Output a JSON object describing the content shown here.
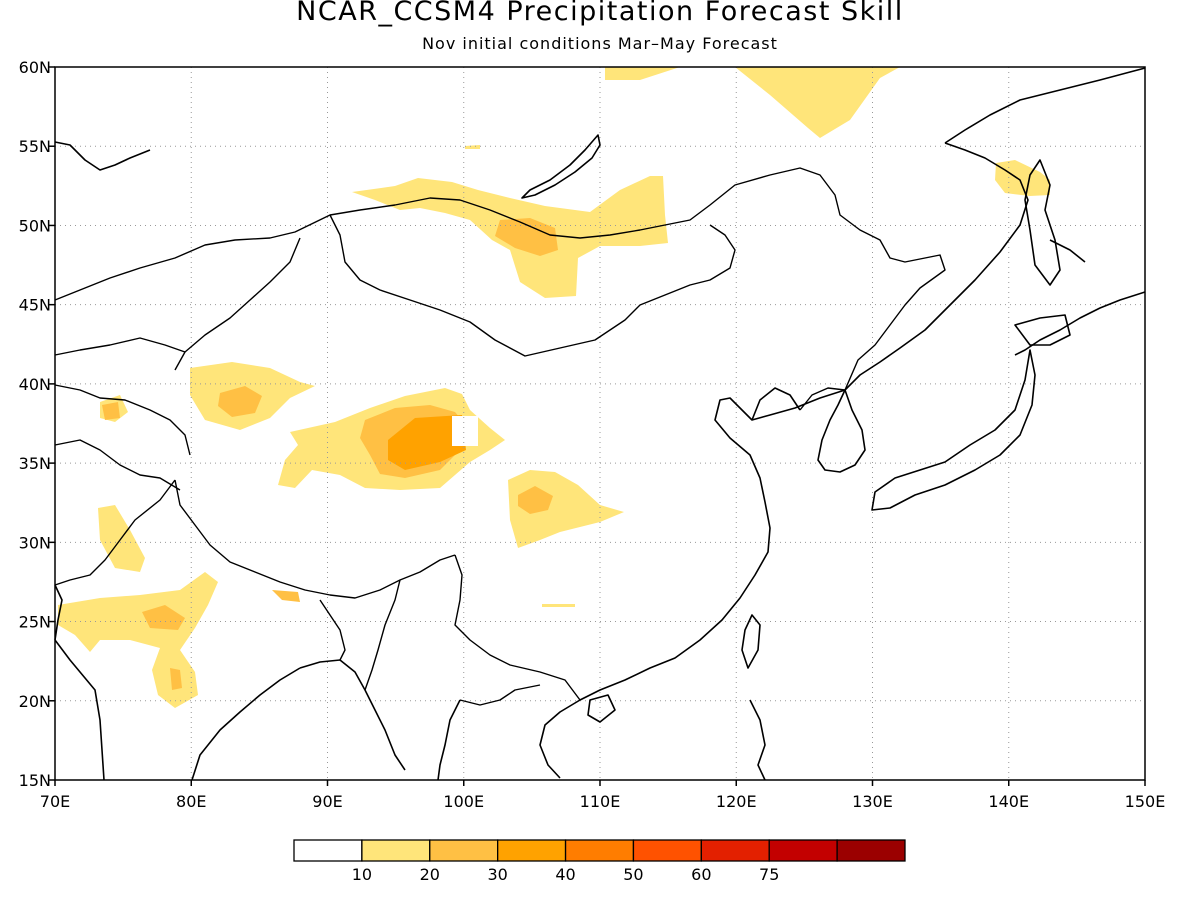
{
  "title": "NCAR_CCSM4 Precipitation Forecast Skill",
  "subtitle": "Nov initial conditions  Mar–May Forecast",
  "map": {
    "lon_range": [
      70,
      150
    ],
    "lat_range": [
      15,
      60
    ],
    "x_ticks": [
      {
        "value": 70,
        "label": "70E"
      },
      {
        "value": 80,
        "label": "80E"
      },
      {
        "value": 90,
        "label": "90E"
      },
      {
        "value": 100,
        "label": "100E"
      },
      {
        "value": 110,
        "label": "110E"
      },
      {
        "value": 120,
        "label": "120E"
      },
      {
        "value": 130,
        "label": "130E"
      },
      {
        "value": 140,
        "label": "140E"
      },
      {
        "value": 150,
        "label": "150E"
      }
    ],
    "y_ticks": [
      {
        "value": 15,
        "label": "15N"
      },
      {
        "value": 20,
        "label": "20N"
      },
      {
        "value": 25,
        "label": "25N"
      },
      {
        "value": 30,
        "label": "30N"
      },
      {
        "value": 35,
        "label": "35N"
      },
      {
        "value": 40,
        "label": "40N"
      },
      {
        "value": 45,
        "label": "45N"
      },
      {
        "value": 50,
        "label": "50N"
      },
      {
        "value": 55,
        "label": "55N"
      },
      {
        "value": 60,
        "label": "60N"
      }
    ],
    "grid": "dotted"
  },
  "colorbar": {
    "colors": [
      "#ffffff",
      "#ffe57a",
      "#ffc044",
      "#ffa200",
      "#ff7d00",
      "#ff5200",
      "#e32000",
      "#c30000",
      "#9b0000"
    ],
    "labels": [
      "10",
      "20",
      "30",
      "40",
      "50",
      "60",
      "75"
    ]
  },
  "colors": {
    "level_10_20": "#ffe57a",
    "level_20_30": "#ffc044",
    "level_30_40": "#ffa200"
  }
}
